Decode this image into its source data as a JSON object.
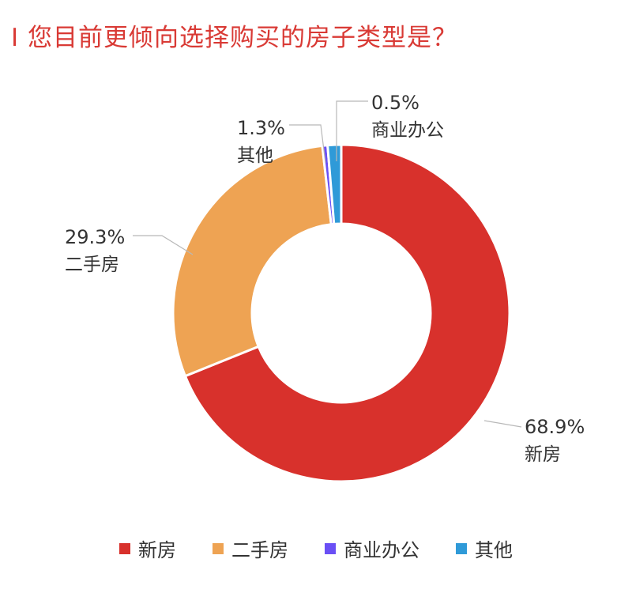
{
  "chart_data": {
    "type": "pie",
    "title": "I 您目前更倾向选择购买的房子类型是？",
    "donut": true,
    "categories": [
      "新房",
      "二手房",
      "商业办公",
      "其他"
    ],
    "values": [
      68.9,
      29.3,
      0.5,
      1.3
    ],
    "value_labels": [
      "68.9%",
      "29.3%",
      "0.5%",
      "1.3%"
    ],
    "colors": [
      "#d8312c",
      "#eea353",
      "#6a4ff5",
      "#2f9ad8"
    ],
    "legend_position": "bottom-center"
  }
}
